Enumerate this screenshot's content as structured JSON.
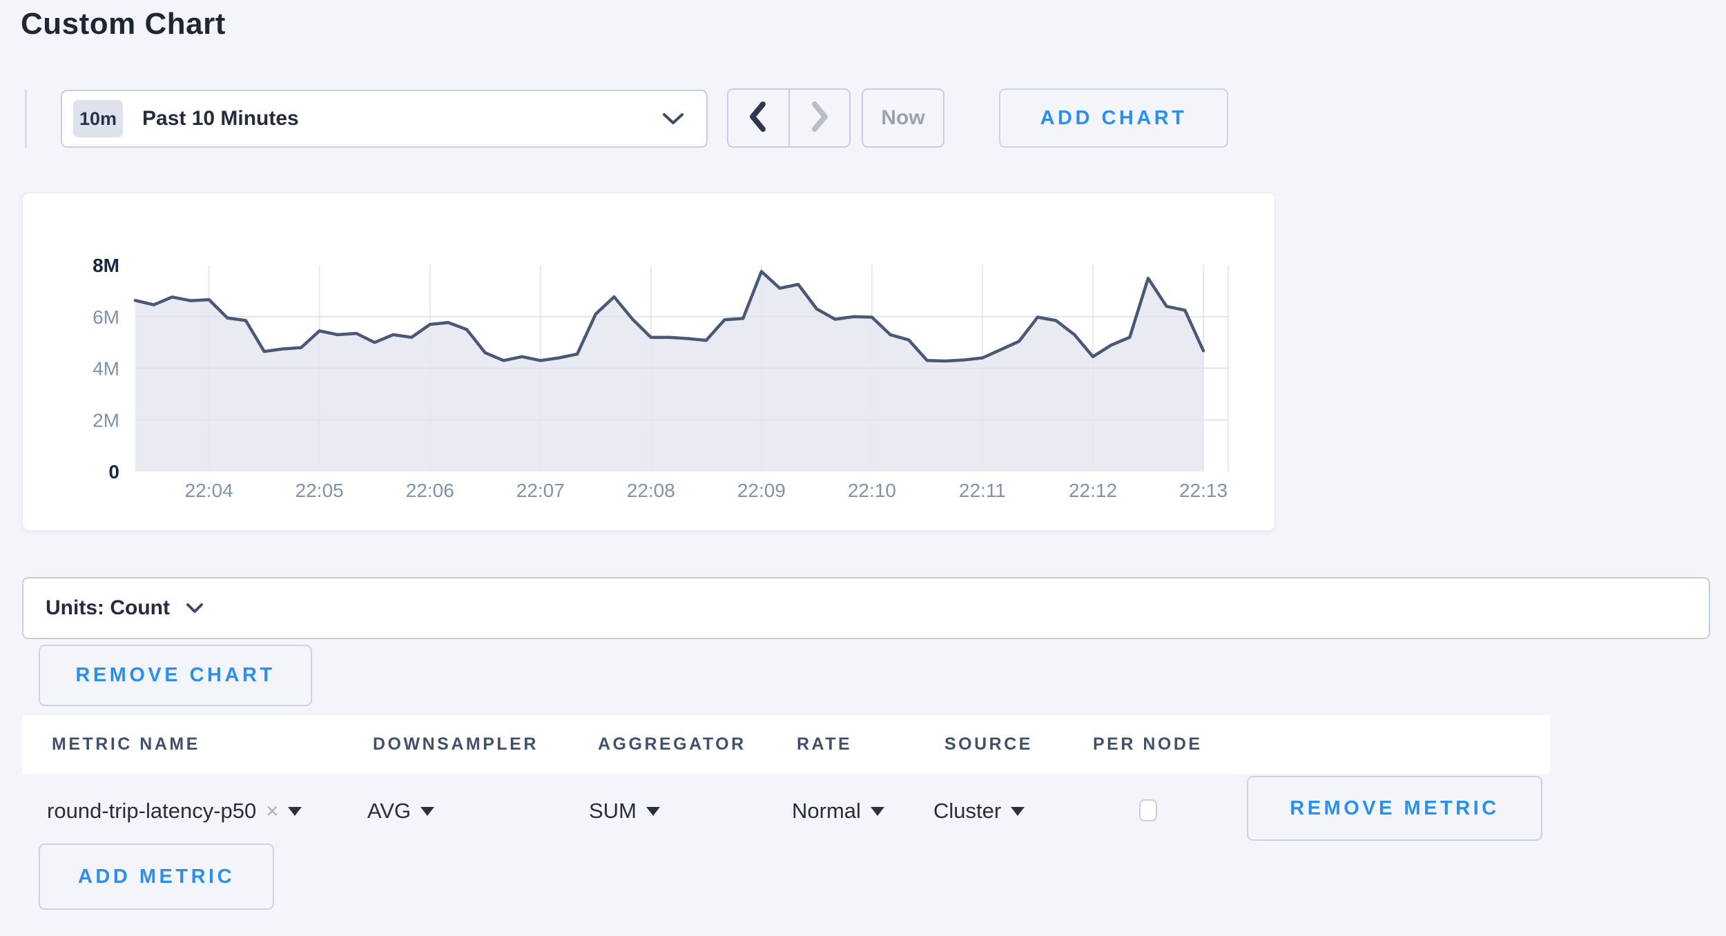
{
  "page": {
    "title": "Custom Chart",
    "background_color": "#f4f5fa",
    "accent_blue": "#2b8ff0"
  },
  "toolbar": {
    "time_range_badge": "10m",
    "time_range_label": "Past 10 Minutes",
    "now_label": "Now",
    "add_chart_label": "ADD CHART"
  },
  "icons": {
    "time_dropdown": "chevron-down",
    "prev": "chevron-left",
    "next": "chevron-right",
    "units_dropdown": "chevron-down",
    "metric_clear": "×",
    "select_caret": "triangle-down"
  },
  "chart_data": {
    "type": "area",
    "series_name": "round-trip-latency-p50",
    "title": "",
    "xlabel": "",
    "ylabel": "",
    "grid": true,
    "legend": "none",
    "ylim_label": [
      "0",
      "8M"
    ],
    "ylim": [
      0,
      8000000
    ],
    "line_color": "#4a5876",
    "fill_color": "#e9ebf2",
    "y_ticks": [
      {
        "label": "0",
        "value": 0,
        "bold": true
      },
      {
        "label": "2M",
        "value": 2,
        "bold": false
      },
      {
        "label": "4M",
        "value": 4,
        "bold": false
      },
      {
        "label": "6M",
        "value": 6,
        "bold": false
      },
      {
        "label": "8M",
        "value": 8,
        "bold": true
      }
    ],
    "x_tick_labels": [
      "22:04",
      "22:05",
      "22:06",
      "22:07",
      "22:08",
      "22:09",
      "22:10",
      "22:11",
      "22:12",
      "22:13"
    ],
    "x": [
      "22:03:20",
      "22:03:30",
      "22:03:40",
      "22:03:50",
      "22:04:00",
      "22:04:10",
      "22:04:20",
      "22:04:30",
      "22:04:40",
      "22:04:50",
      "22:05:00",
      "22:05:10",
      "22:05:20",
      "22:05:30",
      "22:05:40",
      "22:05:50",
      "22:06:00",
      "22:06:10",
      "22:06:20",
      "22:06:30",
      "22:06:40",
      "22:06:50",
      "22:07:00",
      "22:07:10",
      "22:07:20",
      "22:07:30",
      "22:07:40",
      "22:07:50",
      "22:08:00",
      "22:08:10",
      "22:08:20",
      "22:08:30",
      "22:08:40",
      "22:08:50",
      "22:09:00",
      "22:09:10",
      "22:09:20",
      "22:09:30",
      "22:09:40",
      "22:09:50",
      "22:10:00",
      "22:10:10",
      "22:10:20",
      "22:10:30",
      "22:10:40",
      "22:10:50",
      "22:11:00",
      "22:11:10",
      "22:11:20",
      "22:11:30",
      "22:11:40",
      "22:11:50",
      "22:12:00",
      "22:12:10",
      "22:12:20",
      "22:12:30",
      "22:12:40",
      "22:12:50",
      "22:13:00"
    ],
    "values_millions": [
      6.63,
      6.46,
      6.76,
      6.62,
      6.66,
      5.95,
      5.85,
      4.65,
      4.75,
      4.8,
      5.45,
      5.3,
      5.35,
      5.0,
      5.3,
      5.2,
      5.7,
      5.77,
      5.5,
      4.6,
      4.3,
      4.45,
      4.3,
      4.4,
      4.55,
      6.1,
      6.77,
      5.9,
      5.2,
      5.2,
      5.15,
      5.08,
      5.88,
      5.93,
      7.75,
      7.1,
      7.25,
      6.3,
      5.9,
      6.0,
      5.98,
      5.3,
      5.1,
      4.3,
      4.28,
      4.32,
      4.4,
      4.72,
      5.05,
      5.98,
      5.85,
      5.3,
      4.45,
      4.9,
      5.2,
      7.49,
      6.4,
      6.25,
      4.68
    ]
  },
  "units_bar": {
    "label": "Units: Count"
  },
  "chart_actions": {
    "remove_chart_label": "REMOVE CHART"
  },
  "metrics_table": {
    "columns": [
      "METRIC NAME",
      "DOWNSAMPLER",
      "AGGREGATOR",
      "RATE",
      "SOURCE",
      "PER NODE"
    ],
    "rows": [
      {
        "metric_name": "round-trip-latency-p50",
        "downsampler": "AVG",
        "aggregator": "SUM",
        "rate": "Normal",
        "source": "Cluster",
        "per_node_checked": false
      }
    ],
    "remove_metric_label": "REMOVE METRIC",
    "add_metric_label": "ADD METRIC"
  }
}
